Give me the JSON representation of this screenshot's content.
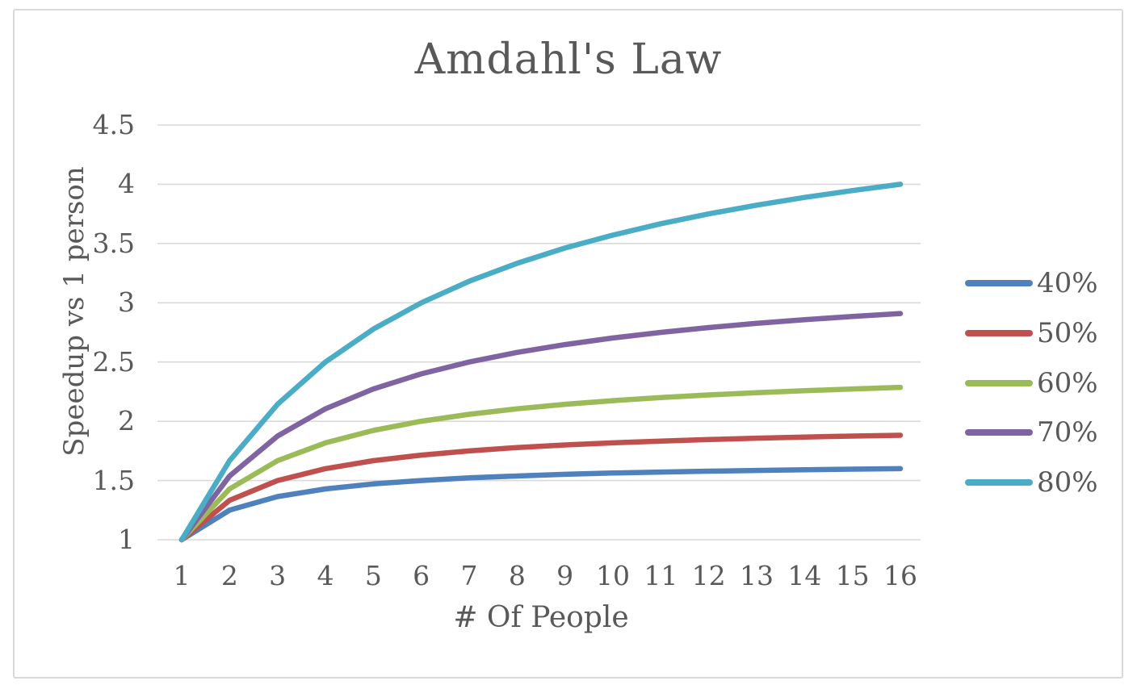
{
  "window": {
    "background": "#ffffff",
    "frame_border_color": "#d9d9d9"
  },
  "colors": {
    "text": "#595959",
    "gridline": "#d9d9d9"
  },
  "chart_data": {
    "type": "line",
    "title": "Amdahl's Law",
    "xlabel": "# Of People",
    "ylabel": "Speedup vs 1 person",
    "xlim": [
      1,
      16
    ],
    "ylim": [
      1,
      4.5
    ],
    "grid": true,
    "legend_position": "right",
    "x": [
      1,
      2,
      3,
      4,
      5,
      6,
      7,
      8,
      9,
      10,
      11,
      12,
      13,
      14,
      15,
      16
    ],
    "x_tick_labels": [
      "1",
      "2",
      "3",
      "4",
      "5",
      "6",
      "7",
      "8",
      "9",
      "10",
      "11",
      "12",
      "13",
      "14",
      "15",
      "16"
    ],
    "y_ticks": [
      1,
      1.5,
      2,
      2.5,
      3,
      3.5,
      4,
      4.5
    ],
    "y_tick_labels": [
      "1",
      "1.5",
      "2",
      "2.5",
      "3",
      "3.5",
      "4",
      "4.5"
    ],
    "series": [
      {
        "name": "40%",
        "color": "#4F81BD",
        "values": [
          1,
          1.25,
          1.364,
          1.429,
          1.471,
          1.5,
          1.522,
          1.538,
          1.552,
          1.563,
          1.571,
          1.579,
          1.585,
          1.591,
          1.596,
          1.6
        ]
      },
      {
        "name": "50%",
        "color": "#C0504D",
        "values": [
          1,
          1.333,
          1.5,
          1.6,
          1.667,
          1.714,
          1.75,
          1.778,
          1.8,
          1.818,
          1.833,
          1.846,
          1.857,
          1.867,
          1.875,
          1.882
        ]
      },
      {
        "name": "60%",
        "color": "#9BBB59",
        "values": [
          1,
          1.429,
          1.667,
          1.818,
          1.923,
          2,
          2.059,
          2.105,
          2.143,
          2.174,
          2.2,
          2.222,
          2.241,
          2.258,
          2.273,
          2.286
        ]
      },
      {
        "name": "70%",
        "color": "#8064A2",
        "values": [
          1,
          1.538,
          1.875,
          2.105,
          2.273,
          2.4,
          2.5,
          2.581,
          2.647,
          2.703,
          2.75,
          2.791,
          2.826,
          2.857,
          2.885,
          2.909
        ]
      },
      {
        "name": "80%",
        "color": "#4BACC6",
        "values": [
          1,
          1.667,
          2.143,
          2.5,
          2.778,
          3,
          3.182,
          3.333,
          3.462,
          3.571,
          3.667,
          3.75,
          3.824,
          3.889,
          3.947,
          4
        ]
      }
    ]
  }
}
